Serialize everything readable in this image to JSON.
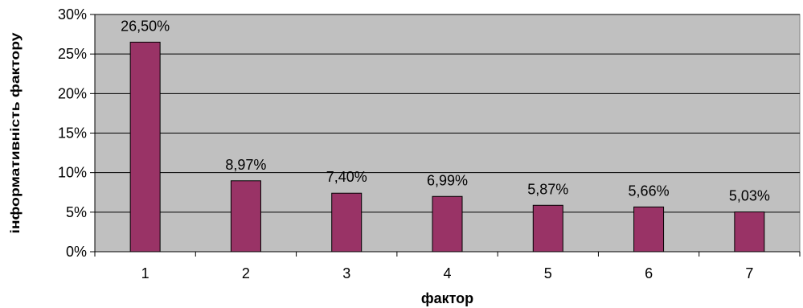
{
  "chart_data": {
    "type": "bar",
    "categories": [
      "1",
      "2",
      "3",
      "4",
      "5",
      "6",
      "7"
    ],
    "values": [
      26.5,
      8.97,
      7.4,
      6.99,
      5.87,
      5.66,
      5.03
    ],
    "data_labels": [
      "26,50%",
      "8,97%",
      "7,40%",
      "6,99%",
      "5,87%",
      "5,66%",
      "5,03%"
    ],
    "title": "",
    "xlabel": "фактор",
    "ylabel": "інформативність фактору",
    "ylim": [
      0,
      30
    ],
    "yticks": [
      0,
      5,
      10,
      15,
      20,
      25,
      30
    ],
    "ytick_labels": [
      "0%",
      "5%",
      "10%",
      "15%",
      "20%",
      "25%",
      "30%"
    ],
    "grid": true,
    "legend": "none"
  },
  "colors": {
    "bar_fill": "#993366",
    "plot_background": "#c0c0c0",
    "gridline": "#000000"
  }
}
